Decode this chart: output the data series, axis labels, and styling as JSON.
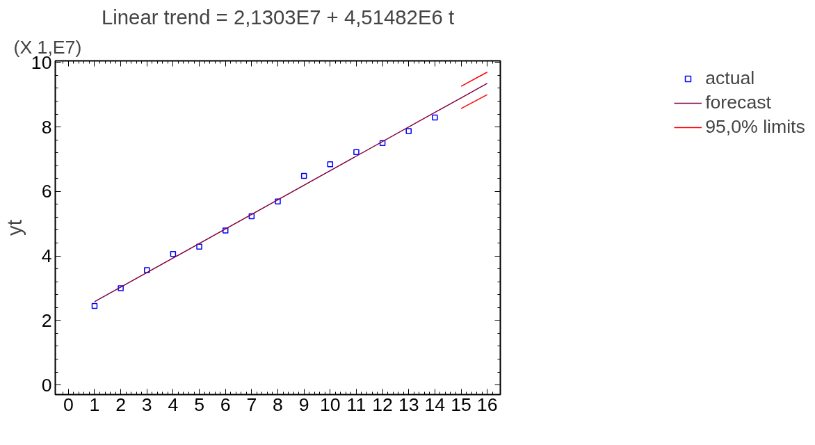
{
  "chart_data": {
    "type": "line",
    "title": "Linear trend = 2,1303E7 + 4,51482E6 t",
    "ylabel": "yt",
    "annotations": [
      "(X 1,E7)"
    ],
    "xlim": [
      -0.5,
      16.5
    ],
    "xticks": [
      0,
      1,
      2,
      3,
      4,
      5,
      6,
      7,
      8,
      9,
      10,
      11,
      12,
      13,
      14,
      15,
      16
    ],
    "ylim": [
      -0.3,
      10.05
    ],
    "yticks": [
      0,
      2,
      4,
      6,
      8,
      10
    ],
    "grid": false,
    "legend": "right",
    "series": [
      {
        "name": "actual",
        "type": "scatter",
        "marker": "square",
        "color": "#0000ff",
        "x": [
          1,
          2,
          3,
          4,
          5,
          6,
          7,
          8,
          9,
          10,
          11,
          12,
          13,
          14
        ],
        "values": [
          2.45,
          3.0,
          3.56,
          4.06,
          4.29,
          4.79,
          5.23,
          5.69,
          6.48,
          6.84,
          7.22,
          7.5,
          7.87,
          8.29
        ]
      },
      {
        "name": "forecast",
        "color": "#800040",
        "x": [
          1,
          14,
          15,
          16
        ],
        "values": [
          2.58,
          8.45,
          8.9,
          9.35
        ]
      },
      {
        "name": "95,0% limits",
        "color": "#ff0000",
        "x": [
          15,
          16
        ],
        "values": [
          9.26,
          9.7
        ]
      },
      {
        "color": "#ff0000",
        "x": [
          15,
          16
        ],
        "values": [
          8.57,
          9.0
        ]
      }
    ]
  }
}
